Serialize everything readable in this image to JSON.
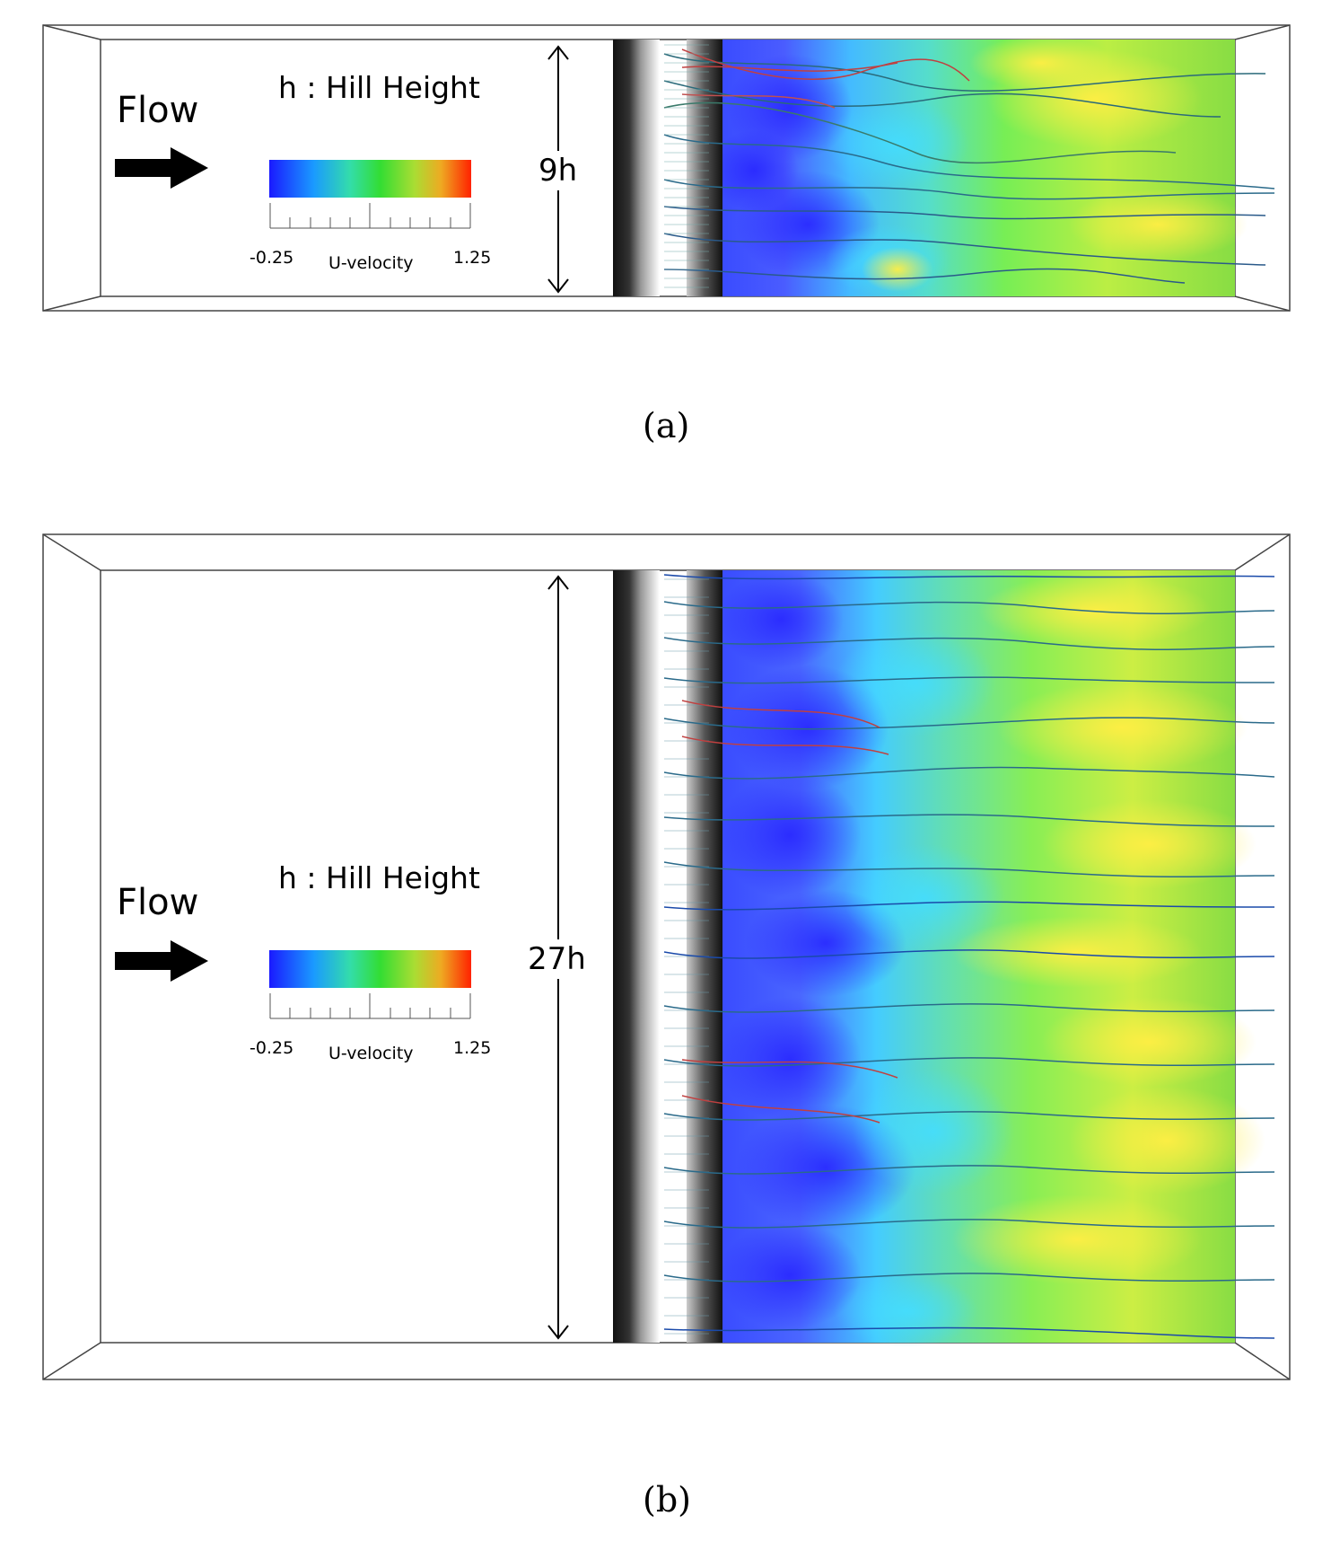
{
  "panels": [
    {
      "id": "a",
      "caption": "(a)",
      "flow_label": "Flow",
      "hill_label": "h : Hill Height",
      "width_label": "9h",
      "colorbar": {
        "title": "U-velocity",
        "min_label": "-0.25",
        "max_label": "1.25"
      }
    },
    {
      "id": "b",
      "caption": "(b)",
      "flow_label": "Flow",
      "hill_label": "h : Hill Height",
      "width_label": "27h",
      "colorbar": {
        "title": "U-velocity",
        "min_label": "-0.25",
        "max_label": "1.25"
      }
    }
  ],
  "colors": {
    "low": "#1a1aff",
    "mid_low": "#33ccff",
    "mid": "#33dd33",
    "mid_high": "#ffff33",
    "high": "#ff2200",
    "streamline_blue": "#1a3f9a",
    "streamline_teal": "#2a8a8a",
    "streamline_red": "#c04040"
  }
}
